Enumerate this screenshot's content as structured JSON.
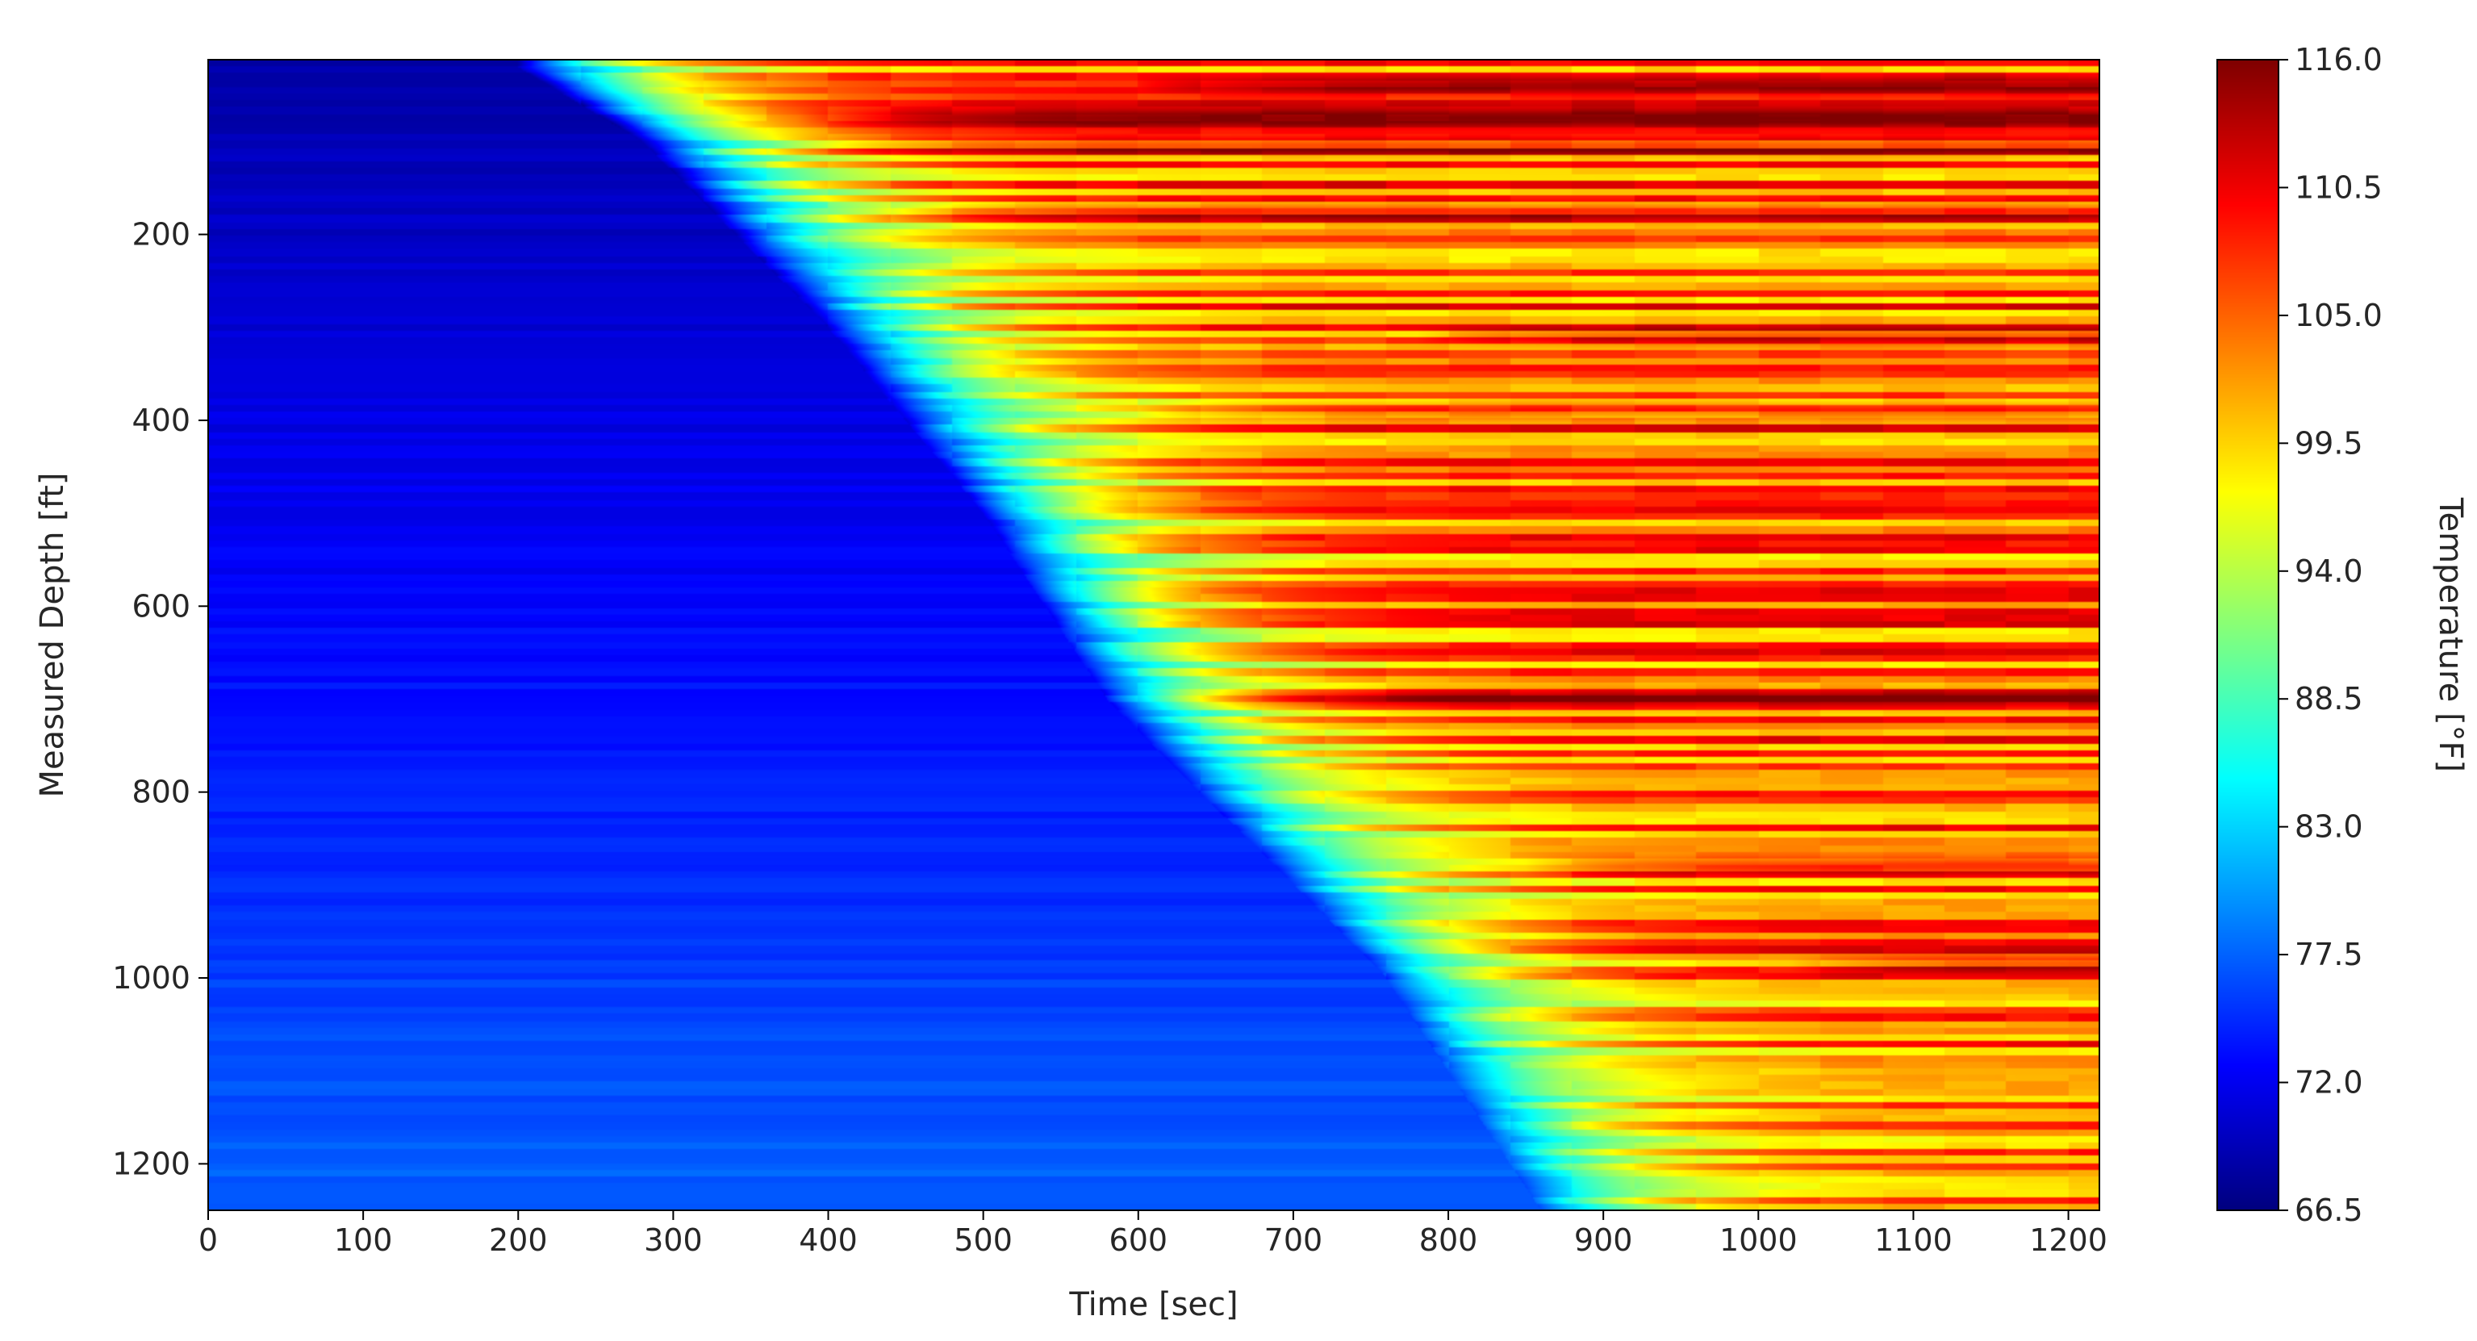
{
  "chart_data": {
    "type": "heatmap",
    "title": "",
    "xlabel": "Time [sec]",
    "ylabel": "Measured Depth [ft]",
    "xlim": [
      0,
      1220
    ],
    "ylim": [
      1250,
      12
    ],
    "y_inverted": true,
    "x_ticks": [
      0,
      100,
      200,
      300,
      400,
      500,
      600,
      700,
      800,
      900,
      1000,
      1100,
      1200
    ],
    "y_ticks": [
      200,
      400,
      600,
      800,
      1000,
      1200
    ],
    "colormap": "jet",
    "colorbar": {
      "label": "Temperature [°F]",
      "vmin": 66.5,
      "vmax": 116.0,
      "ticks": [
        "116.0",
        "110.5",
        "105.0",
        "99.5",
        "94.0",
        "88.5",
        "83.0",
        "77.5",
        "72.0",
        "66.5"
      ]
    },
    "warm_front": {
      "description_units": "time in sec at which temperature starts rising, by depth in ft",
      "depth": [
        20,
        100,
        200,
        300,
        400,
        500,
        600,
        700,
        800,
        900,
        1000,
        1100,
        1250
      ],
      "onset_time": [
        200,
        280,
        340,
        400,
        450,
        500,
        540,
        580,
        640,
        700,
        760,
        800,
        860
      ]
    },
    "hot_bands": [
      {
        "depth": 40,
        "start_time": 600,
        "temperature": 112
      },
      {
        "depth": 75,
        "start_time": 380,
        "temperature": 113
      },
      {
        "depth": 105,
        "start_time": 360,
        "temperature": 114
      },
      {
        "depth": 175,
        "start_time": 430,
        "temperature": 110
      },
      {
        "depth": 310,
        "start_time": 780,
        "temperature": 112
      },
      {
        "depth": 390,
        "start_time": 600,
        "temperature": 109
      },
      {
        "depth": 700,
        "start_time": 620,
        "temperature": 110
      },
      {
        "depth": 880,
        "start_time": 850,
        "temperature": 111
      },
      {
        "depth": 985,
        "start_time": 1020,
        "temperature": 108
      }
    ]
  }
}
